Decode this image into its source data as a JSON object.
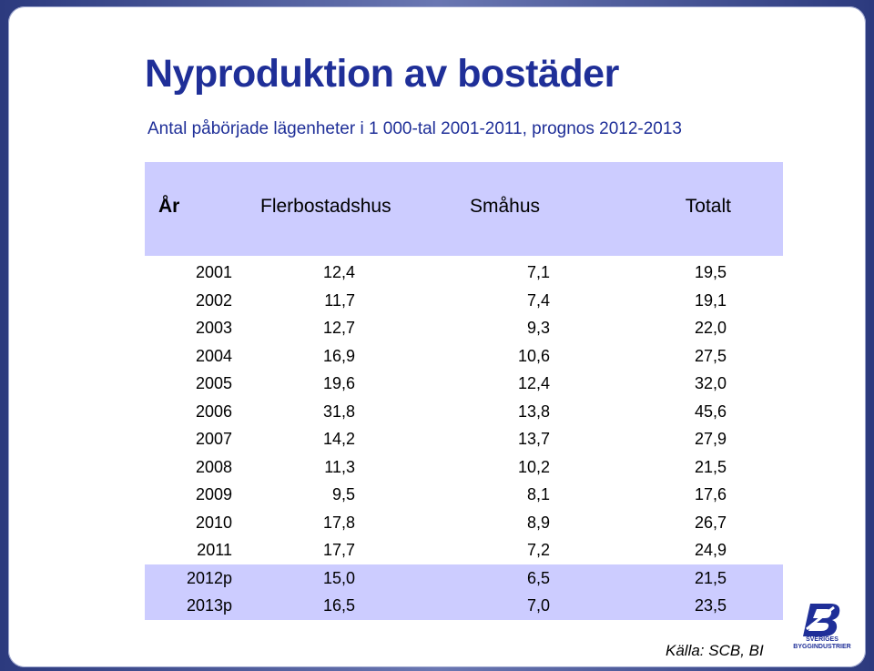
{
  "title": "Nyproduktion av bostäder",
  "subtitle": "Antal påbörjade lägenheter i 1 000-tal 2001-2011, prognos 2012-2013",
  "table": {
    "headers": [
      "År",
      "Flerbostadshus",
      "Småhus",
      "Totalt"
    ],
    "rows": [
      {
        "year": "2001",
        "flerbostadshus": "12,4",
        "smahus": "7,1",
        "totalt": "19,5"
      },
      {
        "year": "2002",
        "flerbostadshus": "11,7",
        "smahus": "7,4",
        "totalt": "19,1"
      },
      {
        "year": "2003",
        "flerbostadshus": "12,7",
        "smahus": "9,3",
        "totalt": "22,0"
      },
      {
        "year": "2004",
        "flerbostadshus": "16,9",
        "smahus": "10,6",
        "totalt": "27,5"
      },
      {
        "year": "2005",
        "flerbostadshus": "19,6",
        "smahus": "12,4",
        "totalt": "32,0"
      },
      {
        "year": "2006",
        "flerbostadshus": "31,8",
        "smahus": "13,8",
        "totalt": "45,6"
      },
      {
        "year": "2007",
        "flerbostadshus": "14,2",
        "smahus": "13,7",
        "totalt": "27,9"
      },
      {
        "year": "2008",
        "flerbostadshus": "11,3",
        "smahus": "10,2",
        "totalt": "21,5"
      },
      {
        "year": "2009",
        "flerbostadshus": "9,5",
        "smahus": "8,1",
        "totalt": "17,6"
      },
      {
        "year": "2010",
        "flerbostadshus": "17,8",
        "smahus": "8,9",
        "totalt": "26,7"
      },
      {
        "year": "2011",
        "flerbostadshus": "17,7",
        "smahus": "7,2",
        "totalt": "24,9"
      },
      {
        "year": "2012p",
        "flerbostadshus": "15,0",
        "smahus": "6,5",
        "totalt": "21,5"
      },
      {
        "year": "2013p",
        "flerbostadshus": "16,5",
        "smahus": "7,0",
        "totalt": "23,5"
      }
    ]
  },
  "source": "Källa: SCB, BI",
  "logo": {
    "icon": "sveriges-byggindustrier-logo",
    "line1": "SVERIGES",
    "line2": "BYGGINDUSTRIER"
  },
  "colors": {
    "title": "#1f2f98",
    "header_bg": "#ccccff",
    "frame": "#3f4d8f"
  }
}
